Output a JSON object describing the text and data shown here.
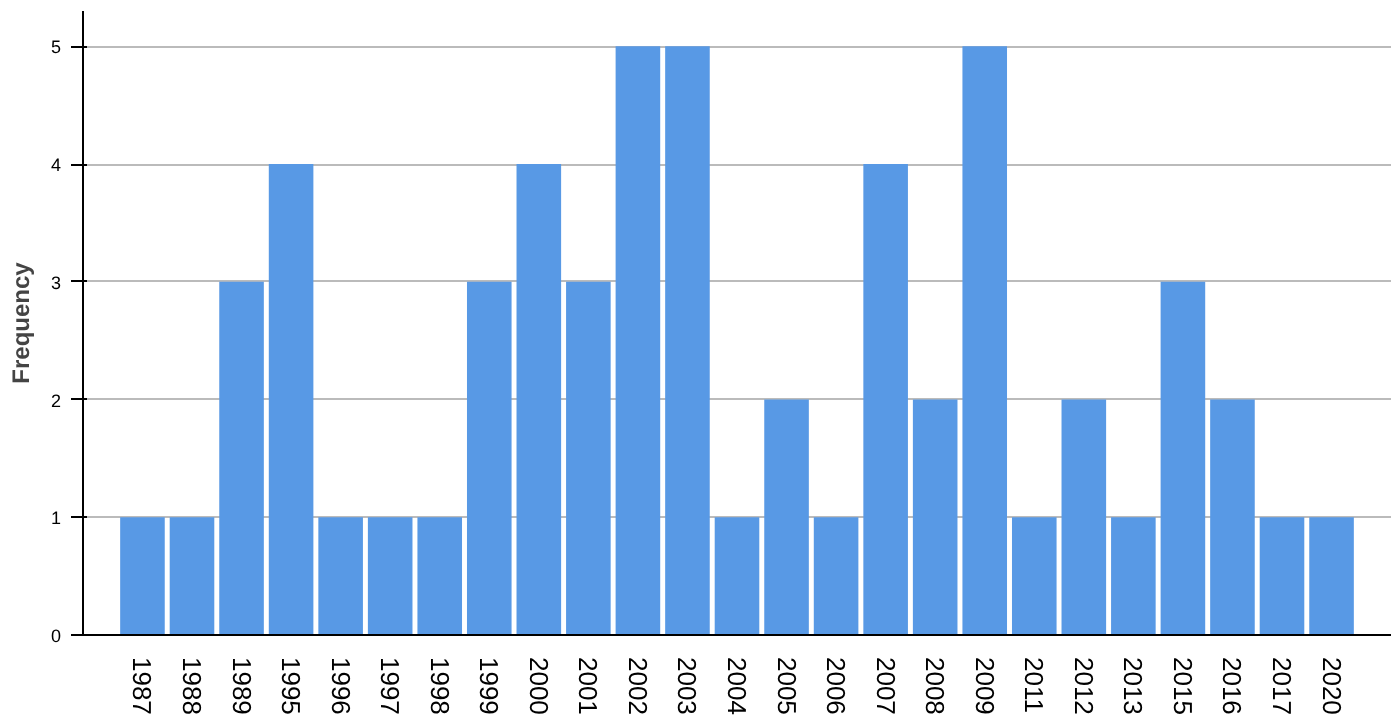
{
  "chart_data": {
    "type": "bar",
    "ylabel": "Frequency",
    "categories": [
      "1987",
      "1988",
      "1989",
      "1995",
      "1996",
      "1997",
      "1998",
      "1999",
      "2000",
      "2001",
      "2002",
      "2003",
      "2004",
      "2005",
      "2006",
      "2007",
      "2008",
      "2009",
      "2011",
      "2012",
      "2013",
      "2015",
      "2016",
      "2017",
      "2020"
    ],
    "values": [
      1,
      1,
      3,
      4,
      1,
      1,
      1,
      3,
      4,
      3,
      5,
      5,
      1,
      2,
      1,
      4,
      2,
      5,
      1,
      2,
      1,
      3,
      2,
      1,
      1
    ],
    "color": "#5899e5",
    "ylim": [
      0,
      5.3
    ],
    "yticks": [
      0,
      1,
      2,
      3,
      4,
      5
    ],
    "grid": "y"
  }
}
